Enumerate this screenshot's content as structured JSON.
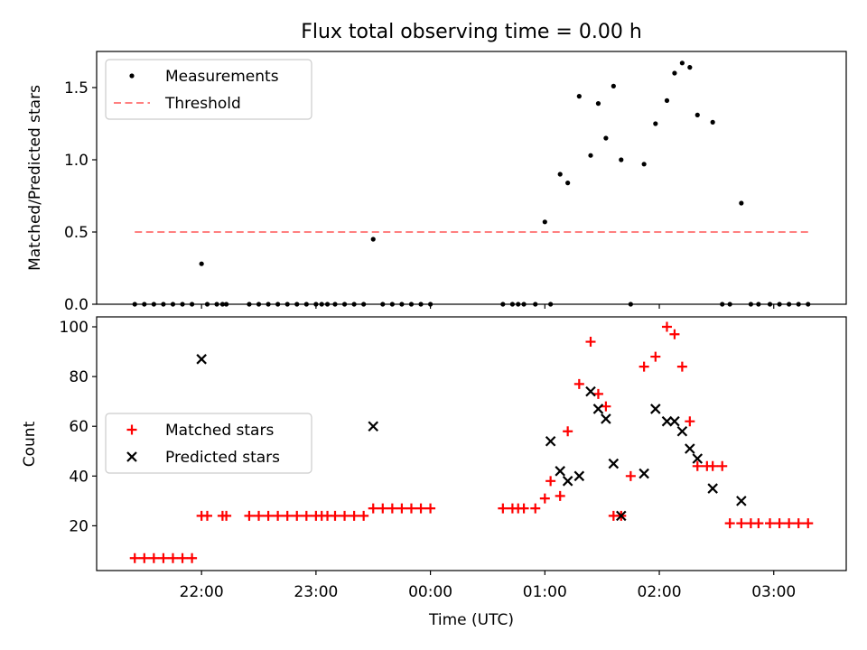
{
  "chart_data": [
    {
      "type": "scatter",
      "title": "Flux total observing time = 0.00 h",
      "ylabel": "Matched/Predicted stars",
      "xlabel": "",
      "ylim": [
        0,
        1.75
      ],
      "y_ticks": [
        "0.0",
        "0.5",
        "1.0",
        "1.5"
      ],
      "legend_position": "top-left",
      "series": [
        {
          "name": "Measurements",
          "color": "#000000",
          "marker": "dot",
          "x": [
            "21:25",
            "21:30",
            "21:35",
            "21:40",
            "21:45",
            "21:50",
            "21:55",
            "22:00",
            "22:03",
            "22:08",
            "22:11",
            "22:13",
            "22:25",
            "22:30",
            "22:35",
            "22:40",
            "22:45",
            "22:50",
            "22:55",
            "23:00",
            "23:03",
            "23:06",
            "23:10",
            "23:15",
            "23:20",
            "23:25",
            "23:30",
            "23:35",
            "23:40",
            "23:45",
            "23:50",
            "23:55",
            "24:00",
            "24:38",
            "24:43",
            "24:46",
            "24:49",
            "24:55",
            "25:00",
            "25:03",
            "25:08",
            "25:12",
            "25:18",
            "25:24",
            "25:28",
            "25:32",
            "25:36",
            "25:40",
            "25:45",
            "25:52",
            "25:58",
            "26:04",
            "26:08",
            "26:12",
            "26:16",
            "26:20",
            "26:28",
            "26:33",
            "26:37",
            "26:43",
            "26:48",
            "26:52",
            "26:58",
            "27:03",
            "27:08",
            "27:13",
            "27:18"
          ],
          "y": [
            0,
            0,
            0,
            0,
            0,
            0,
            0,
            0.28,
            0,
            0,
            0,
            0,
            0,
            0,
            0,
            0,
            0,
            0,
            0,
            0,
            0,
            0,
            0,
            0,
            0,
            0,
            0.45,
            0,
            0,
            0,
            0,
            0,
            0,
            0,
            0,
            0,
            0,
            0,
            0.57,
            0,
            0.9,
            0.84,
            1.44,
            1.03,
            1.39,
            1.15,
            1.51,
            1.0,
            0,
            0.97,
            1.25,
            1.41,
            1.6,
            1.67,
            1.64,
            1.31,
            1.26,
            0,
            0,
            0.7,
            0,
            0,
            0,
            0,
            0,
            0,
            0
          ]
        },
        {
          "name": "Threshold",
          "color": "#ff7f7f",
          "style": "dashed",
          "x": [
            "21:25",
            "27:18"
          ],
          "y": [
            0.5,
            0.5
          ]
        }
      ]
    },
    {
      "type": "scatter",
      "title": "",
      "ylabel": "Count",
      "xlabel": "Time (UTC)",
      "ylim": [
        2,
        104
      ],
      "y_ticks": [
        "20",
        "40",
        "60",
        "80",
        "100"
      ],
      "x_ticks": [
        "22:00",
        "23:00",
        "00:00",
        "01:00",
        "02:00",
        "03:00"
      ],
      "legend_position": "center-left",
      "series": [
        {
          "name": "Matched stars",
          "color": "#ff0000",
          "marker": "plus",
          "x": [
            "21:25",
            "21:30",
            "21:35",
            "21:40",
            "21:45",
            "21:50",
            "21:55",
            "22:00",
            "22:03",
            "22:11",
            "22:13",
            "22:25",
            "22:30",
            "22:35",
            "22:40",
            "22:45",
            "22:50",
            "22:55",
            "23:00",
            "23:03",
            "23:06",
            "23:10",
            "23:15",
            "23:20",
            "23:25",
            "23:30",
            "23:35",
            "23:40",
            "23:45",
            "23:50",
            "23:55",
            "24:00",
            "24:38",
            "24:43",
            "24:46",
            "24:49",
            "24:55",
            "25:00",
            "25:03",
            "25:08",
            "25:12",
            "25:18",
            "25:24",
            "25:28",
            "25:32",
            "25:36",
            "25:40",
            "25:45",
            "25:52",
            "25:58",
            "26:04",
            "26:08",
            "26:12",
            "26:16",
            "26:20",
            "26:25",
            "26:28",
            "26:33",
            "26:37",
            "26:43",
            "26:48",
            "26:52",
            "26:58",
            "27:03",
            "27:08",
            "27:13",
            "27:18"
          ],
          "y": [
            7,
            7,
            7,
            7,
            7,
            7,
            7,
            24,
            24,
            24,
            24,
            24,
            24,
            24,
            24,
            24,
            24,
            24,
            24,
            24,
            24,
            24,
            24,
            24,
            24,
            27,
            27,
            27,
            27,
            27,
            27,
            27,
            27,
            27,
            27,
            27,
            27,
            31,
            38,
            32,
            58,
            77,
            94,
            73,
            68,
            24,
            24,
            40,
            84,
            88,
            100,
            97,
            84,
            62,
            44,
            44,
            44,
            44,
            21,
            21,
            21,
            21,
            21,
            21,
            21,
            21,
            21
          ]
        },
        {
          "name": "Predicted stars",
          "color": "#000000",
          "marker": "x",
          "x": [
            "22:00",
            "23:30",
            "25:03",
            "25:08",
            "25:12",
            "25:18",
            "25:24",
            "25:28",
            "25:32",
            "25:36",
            "25:40",
            "25:52",
            "25:58",
            "26:04",
            "26:08",
            "26:12",
            "26:16",
            "26:20",
            "26:28",
            "26:43"
          ],
          "y": [
            87,
            60,
            54,
            42,
            38,
            40,
            74,
            67,
            63,
            45,
            24,
            41,
            67,
            62,
            62,
            58,
            51,
            47,
            35,
            30
          ]
        }
      ]
    }
  ]
}
